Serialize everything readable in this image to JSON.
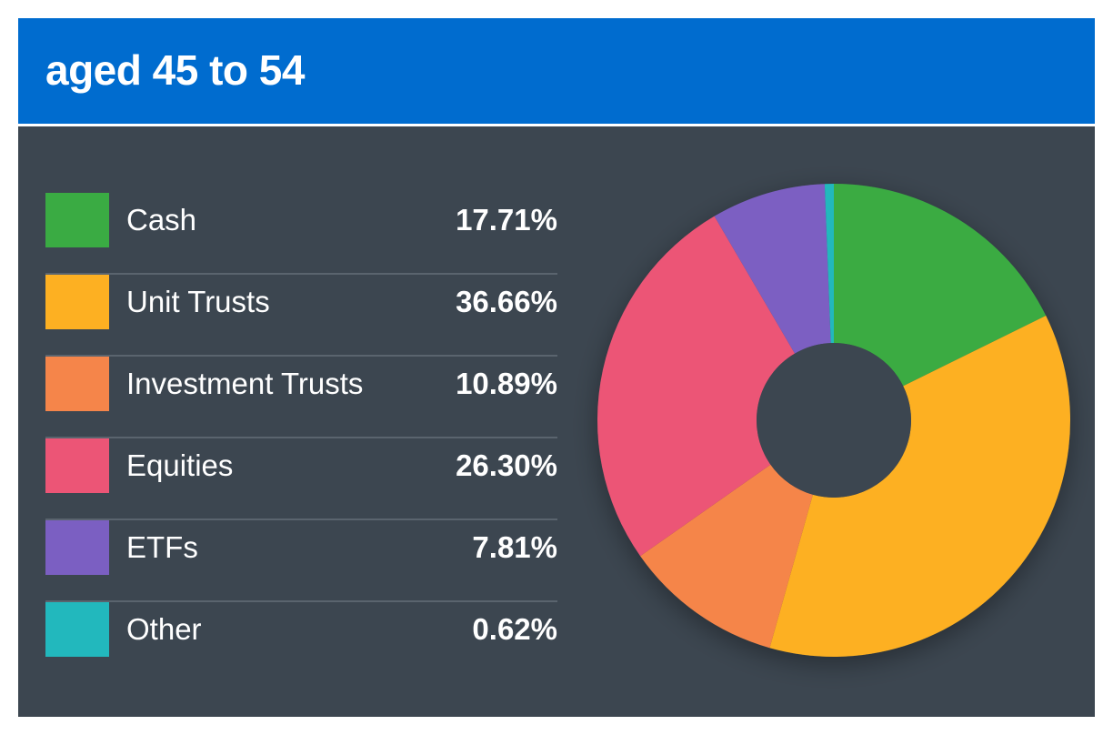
{
  "header": {
    "title": "aged 45 to 54"
  },
  "colors": {
    "header_bg": "#006ccf",
    "panel_bg": "#3c4650"
  },
  "chart_data": {
    "type": "pie",
    "donut": true,
    "title": "aged 45 to 54",
    "legend_position": "left",
    "slices": [
      {
        "label": "Cash",
        "value": 17.71,
        "display": "17.71%",
        "color": "#3aab43"
      },
      {
        "label": "Unit Trusts",
        "value": 36.66,
        "display": "36.66%",
        "color": "#fdb022"
      },
      {
        "label": "Investment Trusts",
        "value": 10.89,
        "display": "10.89%",
        "color": "#f5854a"
      },
      {
        "label": "Equities",
        "value": 26.3,
        "display": "26.30%",
        "color": "#ec5576"
      },
      {
        "label": "ETFs",
        "value": 7.81,
        "display": "7.81%",
        "color": "#7b5fc2"
      },
      {
        "label": "Other",
        "value": 0.62,
        "display": "0.62%",
        "color": "#22b8bd"
      }
    ]
  }
}
